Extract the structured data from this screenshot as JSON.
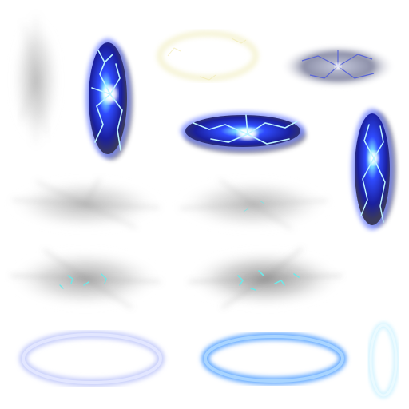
{
  "sheet": {
    "background": "#ffffff",
    "sprites": [
      {
        "name": "smoke-burst-vertical",
        "kind": "smoke"
      },
      {
        "name": "lightning-portal-vertical",
        "kind": "lightning-portal"
      },
      {
        "name": "faint-glow-ring",
        "kind": "glow-ring"
      },
      {
        "name": "grey-crackle-disc",
        "kind": "crackle-disc"
      },
      {
        "name": "lightning-portal-horizontal",
        "kind": "lightning-portal"
      },
      {
        "name": "lightning-portal-vertical-2",
        "kind": "lightning-portal"
      },
      {
        "name": "smoke-burst-wide-1",
        "kind": "smoke"
      },
      {
        "name": "smoke-burst-wide-2",
        "kind": "smoke"
      },
      {
        "name": "smoke-burst-sparks-1",
        "kind": "smoke-sparks"
      },
      {
        "name": "smoke-burst-sparks-2",
        "kind": "smoke-sparks"
      },
      {
        "name": "soft-blue-ring",
        "kind": "ring"
      },
      {
        "name": "bright-blue-ring",
        "kind": "ring"
      },
      {
        "name": "thin-vertical-ring",
        "kind": "ring"
      }
    ]
  },
  "colors": {
    "lightning_core": "#ffffff",
    "lightning_blue": "#2f4bff",
    "lightning_deep": "#1a1f9e",
    "lightning_cyan": "#7fe6ff",
    "portal_dark": "#3a3a5c",
    "smoke_grey": "#8c8c8c",
    "spark_cyan": "#6fe8e8",
    "ring_soft": "#c6cdfa",
    "ring_bright": "#66aaff",
    "ring_pale": "#d6f4ff",
    "glow_yellow": "#f3f0c8"
  }
}
